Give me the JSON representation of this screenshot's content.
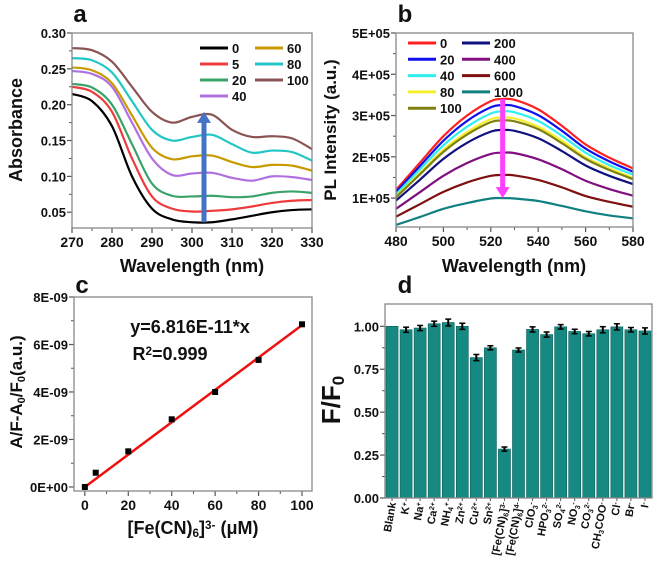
{
  "chart_data": [
    {
      "panel_label": "a",
      "type": "line",
      "xlabel": "Wavelength (nm)",
      "ylabel": "Absorbance",
      "xlim": [
        270,
        330
      ],
      "ylim": [
        0.028,
        0.3
      ],
      "xticks": [
        270,
        280,
        290,
        300,
        310,
        320,
        330
      ],
      "xtick_labels": [
        "270",
        "280",
        "290",
        "300",
        "310",
        "320",
        "330"
      ],
      "yticks": [
        0.05,
        0.1,
        0.15,
        0.2,
        0.25,
        0.3
      ],
      "ytick_labels": [
        "0.05",
        "0.10",
        "0.15",
        "0.20",
        "0.25",
        "0.30"
      ],
      "legend_placement": "top-right",
      "grid": false,
      "x": [
        270,
        275,
        280,
        285,
        290,
        295,
        300,
        305,
        310,
        315,
        320,
        325,
        330
      ],
      "series": [
        {
          "name": "0",
          "color": "#000000",
          "values": [
            0.215,
            0.205,
            0.17,
            0.1,
            0.055,
            0.04,
            0.036,
            0.036,
            0.04,
            0.045,
            0.05,
            0.053,
            0.054
          ]
        },
        {
          "name": "5",
          "color": "#ee3b3b",
          "values": [
            0.225,
            0.218,
            0.19,
            0.125,
            0.072,
            0.055,
            0.051,
            0.052,
            0.054,
            0.058,
            0.063,
            0.066,
            0.067
          ]
        },
        {
          "name": "20",
          "color": "#3aa36a",
          "values": [
            0.229,
            0.224,
            0.2,
            0.145,
            0.09,
            0.073,
            0.072,
            0.073,
            0.071,
            0.072,
            0.077,
            0.079,
            0.077
          ]
        },
        {
          "name": "40",
          "color": "#b070e0",
          "values": [
            0.247,
            0.243,
            0.225,
            0.175,
            0.125,
            0.102,
            0.104,
            0.105,
            0.098,
            0.094,
            0.1,
            0.099,
            0.095
          ]
        },
        {
          "name": "60",
          "color": "#c89a00",
          "values": [
            0.252,
            0.248,
            0.23,
            0.185,
            0.14,
            0.124,
            0.128,
            0.129,
            0.12,
            0.113,
            0.116,
            0.115,
            0.108
          ]
        },
        {
          "name": "80",
          "color": "#22c6c6",
          "values": [
            0.265,
            0.262,
            0.245,
            0.205,
            0.165,
            0.15,
            0.155,
            0.158,
            0.145,
            0.133,
            0.136,
            0.134,
            0.122
          ]
        },
        {
          "name": "100",
          "color": "#8a5454",
          "values": [
            0.279,
            0.276,
            0.26,
            0.225,
            0.19,
            0.175,
            0.183,
            0.186,
            0.165,
            0.155,
            0.156,
            0.153,
            0.138
          ]
        }
      ],
      "arrow": {
        "x": 303,
        "from": 0.036,
        "to": 0.19,
        "color": "#4472c4",
        "direction": "up"
      }
    },
    {
      "panel_label": "b",
      "type": "line",
      "xlabel": "Wavelength (nm)",
      "ylabel": "PL Intensity (a.u.)",
      "xlim": [
        480,
        580
      ],
      "ylim": [
        30000,
        500000
      ],
      "xticks": [
        480,
        500,
        520,
        540,
        560,
        580
      ],
      "xtick_labels": [
        "480",
        "500",
        "520",
        "540",
        "560",
        "580"
      ],
      "yticks": [
        100000,
        200000,
        300000,
        400000,
        500000
      ],
      "ytick_labels": [
        "1E+05",
        "2E+05",
        "3E+05",
        "4E+05",
        "5E+05"
      ],
      "legend_placement": "top-left",
      "grid": false,
      "x": [
        480,
        490,
        500,
        510,
        520,
        525,
        530,
        540,
        550,
        560,
        570,
        580
      ],
      "series": [
        {
          "name": "0",
          "color": "#ff2020",
          "values": [
            120000.0,
            185000.0,
            250000.0,
            300000.0,
            335000.0,
            340000.0,
            338000.0,
            315000.0,
            275000.0,
            230000.0,
            198000.0,
            172000.0
          ]
        },
        {
          "name": "20",
          "color": "#1010ee",
          "values": [
            115000.0,
            177000.0,
            239000.0,
            287000.0,
            320000.0,
            325000.0,
            323000.0,
            301000.0,
            263000.0,
            220000.0,
            189000.0,
            164000.0
          ]
        },
        {
          "name": "40",
          "color": "#33eeee",
          "values": [
            109000.0,
            169000.0,
            228000.0,
            273000.0,
            305000.0,
            310000.0,
            308000.0,
            287000.0,
            251000.0,
            210000.0,
            180000.0,
            157000.0
          ]
        },
        {
          "name": "80",
          "color": "#f4f030",
          "values": [
            104000.0,
            160000.0,
            217000.0,
            260000.0,
            291000.0,
            295000.0,
            293000.0,
            273000.0,
            239000.0,
            199000.0,
            172000.0,
            149000.0
          ]
        },
        {
          "name": "100",
          "color": "#808010",
          "values": [
            102000.0,
            157000.0,
            212000.0,
            254000.0,
            284000.0,
            288000.0,
            286000.0,
            267000.0,
            233000.0,
            195000.0,
            168000.0,
            146000.0
          ]
        },
        {
          "name": "200",
          "color": "#101080",
          "values": [
            94000.0,
            144000.0,
            195000.0,
            234000.0,
            261000.0,
            265000.0,
            263000.0,
            245000.0,
            214000.0,
            179000.0,
            154000.0,
            134000.0
          ]
        },
        {
          "name": "400",
          "color": "#801080",
          "values": [
            74000.0,
            114000.0,
            154000.0,
            185000.0,
            207000.0,
            210000.0,
            209000.0,
            194000.0,
            170000.0,
            142000.0,
            122000.0,
            106000.0
          ]
        },
        {
          "name": "600",
          "color": "#801010",
          "values": [
            55000.0,
            85000.0,
            115000.0,
            138000.0,
            154000.0,
            156000.0,
            155000.0,
            144000.0,
            126000.0,
            105000.0,
            91000.0,
            79000.0
          ]
        },
        {
          "name": "1000",
          "color": "#108080",
          "values": [
            35000.0,
            54000.0,
            74000.0,
            88000.0,
            99000.0,
            100000.0,
            99000.0,
            93000.0,
            81000.0,
            68000.0,
            58000.0,
            51000.0
          ]
        }
      ],
      "arrow": {
        "x": 525,
        "from": 340000,
        "to": 100000,
        "color": "#ff40ff",
        "direction": "down"
      }
    },
    {
      "panel_label": "c",
      "type": "scatter",
      "xlabel": [
        [
          "[Fe(CN)",
          ""
        ],
        [
          "6",
          "sub"
        ],
        [
          "]",
          ""
        ],
        [
          "3-",
          "sup"
        ],
        [
          " (μM)",
          ""
        ]
      ],
      "ylabel": [
        [
          "A/F-A",
          ""
        ],
        [
          "0",
          "sub"
        ],
        [
          "/F",
          ""
        ],
        [
          "0",
          "sub"
        ],
        [
          "(a.u.)",
          ""
        ]
      ],
      "xlim": [
        -5,
        104.6
      ],
      "ylim": [
        -1.7e-10,
        8e-09
      ],
      "xticks": [
        0,
        20,
        40,
        60,
        80,
        100
      ],
      "xtick_labels": [
        "0",
        "20",
        "40",
        "60",
        "80",
        "100"
      ],
      "yticks": [
        0,
        2e-09,
        4e-09,
        6e-09,
        8e-09
      ],
      "ytick_labels": [
        "0E+00",
        "2E-09",
        "4E-09",
        "6E-09",
        "8E-09"
      ],
      "grid": false,
      "points": {
        "x": [
          0,
          5,
          20,
          40,
          60,
          80,
          100
        ],
        "y": [
          0,
          6e-10,
          1.5e-09,
          2.85e-09,
          4e-09,
          5.35e-09,
          6.85e-09
        ],
        "color": "#000000"
      },
      "fit": {
        "slope": 6.816e-11,
        "x_range": [
          0,
          100
        ],
        "color": "#ee1111"
      },
      "annotations": [
        [
          [
            "y=6.816E-11*x",
            ""
          ]
        ],
        [
          [
            "R",
            ""
          ],
          [
            "2",
            "sup"
          ],
          [
            "=0.999",
            ""
          ]
        ]
      ]
    },
    {
      "panel_label": "d",
      "type": "bar",
      "ylabel": [
        [
          "F/F",
          ""
        ],
        [
          "0",
          "sub"
        ]
      ],
      "ylim": [
        0,
        1.13
      ],
      "yticks": [
        0,
        0.25,
        0.5,
        0.75,
        1.0
      ],
      "ytick_labels": [
        "0.00",
        "0.25",
        "0.50",
        "0.75",
        "1.00"
      ],
      "bar_color": "#168a82",
      "grid": false,
      "categories": [
        [
          [
            "Blank",
            ""
          ]
        ],
        [
          [
            "K",
            ""
          ],
          [
            "+",
            "sup"
          ]
        ],
        [
          [
            "Na",
            ""
          ],
          [
            "+",
            "sup"
          ]
        ],
        [
          [
            "Ca",
            ""
          ],
          [
            "2+",
            "sup"
          ]
        ],
        [
          [
            "NH",
            ""
          ],
          [
            "4",
            "sub"
          ],
          [
            "+",
            "sup"
          ]
        ],
        [
          [
            "Zn",
            ""
          ],
          [
            "2+",
            "sup"
          ]
        ],
        [
          [
            "Cu",
            ""
          ],
          [
            "2+",
            "sup"
          ]
        ],
        [
          [
            "Sn",
            ""
          ],
          [
            "2+",
            "sup"
          ]
        ],
        [
          [
            "[Fe(CN)",
            ""
          ],
          [
            "6",
            "sub"
          ],
          [
            "]",
            ""
          ],
          [
            "3-",
            "sup"
          ]
        ],
        [
          [
            "[Fe(CN)",
            ""
          ],
          [
            "6",
            "sub"
          ],
          [
            "]",
            ""
          ],
          [
            "4-",
            "sup"
          ]
        ],
        [
          [
            "ClO",
            ""
          ],
          [
            "3",
            "sub"
          ],
          [
            "-",
            "sup"
          ]
        ],
        [
          [
            "HPO",
            ""
          ],
          [
            "3",
            "sub"
          ],
          [
            "2-",
            "sup"
          ]
        ],
        [
          [
            "SO",
            ""
          ],
          [
            "4",
            "sub"
          ],
          [
            "2-",
            "sup"
          ]
        ],
        [
          [
            "NO",
            ""
          ],
          [
            "3",
            "sub"
          ],
          [
            "-",
            "sup"
          ]
        ],
        [
          [
            "CO",
            ""
          ],
          [
            "3",
            "sub"
          ],
          [
            "2-",
            "sup"
          ]
        ],
        [
          [
            "CH",
            ""
          ],
          [
            "3",
            "sub"
          ],
          [
            "COO",
            ""
          ],
          [
            "-",
            "sup"
          ]
        ],
        [
          [
            "Cl",
            ""
          ],
          [
            "-",
            "sup"
          ]
        ],
        [
          [
            "Br",
            ""
          ],
          [
            "-",
            "sup"
          ]
        ],
        [
          [
            "I",
            ""
          ],
          [
            "-",
            "sup"
          ]
        ]
      ],
      "values": [
        1.0,
        0.98,
        0.99,
        1.015,
        1.022,
        1.0,
        0.818,
        0.875,
        0.285,
        0.862,
        0.982,
        0.952,
        0.997,
        0.97,
        0.957,
        0.98,
        0.997,
        0.98,
        0.973
      ],
      "errors": [
        0,
        0.015,
        0.015,
        0.015,
        0.02,
        0.018,
        0.018,
        0.012,
        0.012,
        0.012,
        0.015,
        0.015,
        0.013,
        0.013,
        0.013,
        0.018,
        0.018,
        0.013,
        0.018
      ]
    }
  ]
}
